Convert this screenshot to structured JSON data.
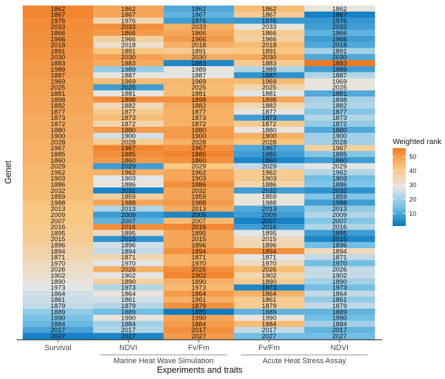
{
  "chart_data": {
    "type": "heatmap",
    "xlabel": "Experiments and traits",
    "ylabel": "Genet",
    "columns": [
      {
        "label": "Survival",
        "group": ""
      },
      {
        "label": "NDVI",
        "group": "Marine Heat Wave Simulation"
      },
      {
        "label": "Fv/Fm",
        "group": "Marine Heat Wave Simulation"
      },
      {
        "label": "Fv/Fm",
        "group": "Acute Heat Stress Assay"
      },
      {
        "label": "NDVI",
        "group": "Acute Heat Stress Assay"
      }
    ],
    "groups": [
      {
        "label": "Marine Heat Wave Simulation",
        "columns": [
          1,
          2
        ]
      },
      {
        "label": "Acute Heat Stress Assay",
        "columns": [
          3,
          4
        ]
      }
    ],
    "genets": [
      "1862",
      "1867",
      "1976",
      "2033",
      "1866",
      "1966",
      "2018",
      "1891",
      "2030",
      "1883",
      "1989",
      "1887",
      "1969",
      "2025",
      "1881",
      "1898",
      "1882",
      "1877",
      "1873",
      "1872",
      "1880",
      "1900",
      "2028",
      "1967",
      "1885",
      "1860",
      "2029",
      "1962",
      "1903",
      "1886",
      "2032",
      "1859",
      "1988",
      "2013",
      "2009",
      "2007",
      "2016",
      "1895",
      "2015",
      "1896",
      "1894",
      "1871",
      "1970",
      "2026",
      "1902",
      "1890",
      "1973",
      "1864",
      "1861",
      "1879",
      "1889",
      "1990",
      "1884",
      "2017",
      "2027"
    ],
    "values": [
      [
        54,
        48,
        10,
        44,
        30
      ],
      [
        54,
        48,
        12,
        40,
        3
      ],
      [
        53,
        35,
        8,
        7,
        7
      ],
      [
        53,
        52,
        46,
        30,
        8
      ],
      [
        52,
        50,
        48,
        40,
        12
      ],
      [
        52,
        38,
        50,
        38,
        8
      ],
      [
        52,
        32,
        46,
        44,
        10
      ],
      [
        51,
        42,
        40,
        42,
        20
      ],
      [
        51,
        49,
        47,
        47,
        10
      ],
      [
        50,
        47,
        4,
        40,
        56
      ],
      [
        50,
        18,
        30,
        22,
        8
      ],
      [
        50,
        30,
        28,
        6,
        22
      ],
      [
        49,
        44,
        45,
        44,
        30
      ],
      [
        49,
        8,
        44,
        36,
        30
      ],
      [
        49,
        30,
        44,
        28,
        10
      ],
      [
        48,
        52,
        52,
        48,
        20
      ],
      [
        48,
        34,
        47,
        36,
        22
      ],
      [
        48,
        40,
        46,
        30,
        16
      ],
      [
        47,
        44,
        46,
        8,
        22
      ],
      [
        47,
        36,
        46,
        40,
        18
      ],
      [
        47,
        50,
        50,
        30,
        10
      ],
      [
        47,
        26,
        50,
        46,
        20
      ],
      [
        46,
        40,
        46,
        42,
        20
      ],
      [
        46,
        54,
        52,
        10,
        38
      ],
      [
        46,
        52,
        54,
        8,
        16
      ],
      [
        46,
        50,
        52,
        4,
        8
      ],
      [
        45,
        8,
        42,
        24,
        28
      ],
      [
        45,
        46,
        48,
        40,
        22
      ],
      [
        45,
        28,
        48,
        40,
        14
      ],
      [
        44,
        30,
        52,
        36,
        16
      ],
      [
        44,
        4,
        48,
        8,
        6
      ],
      [
        44,
        38,
        48,
        30,
        16
      ],
      [
        43,
        48,
        50,
        30,
        8
      ],
      [
        42,
        22,
        47,
        10,
        18
      ],
      [
        42,
        8,
        4,
        8,
        22
      ],
      [
        42,
        12,
        44,
        3,
        16
      ],
      [
        41,
        52,
        54,
        8,
        22
      ],
      [
        40,
        34,
        48,
        28,
        8
      ],
      [
        40,
        6,
        48,
        34,
        4
      ],
      [
        38,
        26,
        48,
        36,
        14
      ],
      [
        37,
        24,
        52,
        52,
        34
      ],
      [
        36,
        36,
        46,
        28,
        24
      ],
      [
        34,
        28,
        46,
        34,
        14
      ],
      [
        33,
        46,
        52,
        44,
        24
      ],
      [
        32,
        28,
        54,
        36,
        24
      ],
      [
        30,
        38,
        46,
        40,
        20
      ],
      [
        28,
        22,
        44,
        4,
        14
      ],
      [
        26,
        30,
        50,
        46,
        24
      ],
      [
        25,
        26,
        46,
        40,
        18
      ],
      [
        24,
        22,
        52,
        40,
        24
      ],
      [
        18,
        14,
        2,
        12,
        12
      ],
      [
        15,
        30,
        48,
        30,
        14
      ],
      [
        13,
        20,
        50,
        44,
        20
      ],
      [
        9,
        22,
        52,
        24,
        12
      ],
      [
        3,
        4,
        50,
        14,
        14
      ]
    ],
    "legend": {
      "title": "Weighted rank",
      "ticks": [
        10,
        20,
        30,
        40,
        50
      ],
      "range": [
        1,
        56
      ],
      "placement": "right"
    },
    "colors": {
      "low": "#0576c0",
      "low_mid": "#79c2e6",
      "mid": "#e6e6e6",
      "high_mid": "#f8c680",
      "high": "#f17a22"
    }
  }
}
